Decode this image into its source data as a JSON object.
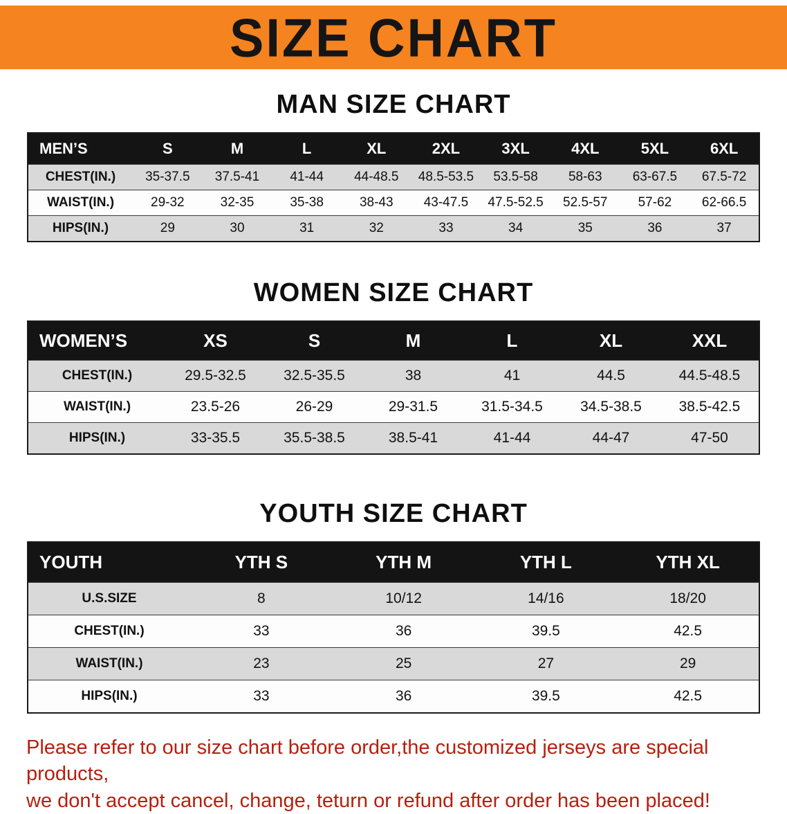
{
  "banner": {
    "title": "SIZE CHART"
  },
  "colors": {
    "accent_orange": "#f5831f",
    "header_black": "#141414",
    "row_shade": "#d9d9d9",
    "footer_red": "#b5200f"
  },
  "sections": [
    {
      "id": "men",
      "title": "MAN SIZE CHART",
      "table": {
        "header": [
          "MEN’S",
          "S",
          "M",
          "L",
          "XL",
          "2XL",
          "3XL",
          "4XL",
          "5XL",
          "6XL"
        ],
        "rows": [
          [
            "CHEST(IN.)",
            "35-37.5",
            "37.5-41",
            "41-44",
            "44-48.5",
            "48.5-53.5",
            "53.5-58",
            "58-63",
            "63-67.5",
            "67.5-72"
          ],
          [
            "WAIST(IN.)",
            "29-32",
            "32-35",
            "35-38",
            "38-43",
            "43-47.5",
            "47.5-52.5",
            "52.5-57",
            "57-62",
            "62-66.5"
          ],
          [
            "HIPS(IN.)",
            "29",
            "30",
            "31",
            "32",
            "33",
            "34",
            "35",
            "36",
            "37"
          ]
        ]
      }
    },
    {
      "id": "women",
      "title": "WOMEN SIZE CHART",
      "table": {
        "header": [
          "WOMEN’S",
          "XS",
          "S",
          "M",
          "L",
          "XL",
          "XXL"
        ],
        "rows": [
          [
            "CHEST(IN.)",
            "29.5-32.5",
            "32.5-35.5",
            "38",
            "41",
            "44.5",
            "44.5-48.5"
          ],
          [
            "WAIST(IN.)",
            "23.5-26",
            "26-29",
            "29-31.5",
            "31.5-34.5",
            "34.5-38.5",
            "38.5-42.5"
          ],
          [
            "HIPS(IN.)",
            "33-35.5",
            "35.5-38.5",
            "38.5-41",
            "41-44",
            "44-47",
            "47-50"
          ]
        ]
      }
    },
    {
      "id": "youth",
      "title": "YOUTH SIZE CHART",
      "table": {
        "header": [
          "YOUTH",
          "YTH S",
          "YTH M",
          "YTH L",
          "YTH XL"
        ],
        "rows": [
          [
            "U.S.SIZE",
            "8",
            "10/12",
            "14/16",
            "18/20"
          ],
          [
            "CHEST(IN.)",
            "33",
            "36",
            "39.5",
            "42.5"
          ],
          [
            "WAIST(IN.)",
            "23",
            "25",
            "27",
            "29"
          ],
          [
            "HIPS(IN.)",
            "33",
            "36",
            "39.5",
            "42.5"
          ]
        ]
      }
    }
  ],
  "footer": {
    "lines": [
      "Please refer to our size chart before order,the customized jerseys are special products,",
      "we don't accept cancel, change, teturn or refund after order has been placed!"
    ]
  }
}
